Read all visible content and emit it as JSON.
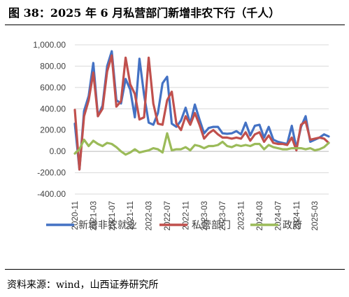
{
  "title": "图 38：2025 年 6 月私营部门新增非农下行（千人）",
  "source": "资料来源：wind，山西证券研究所",
  "chart_data": {
    "type": "line",
    "title": "",
    "xlabel": "",
    "ylabel": "",
    "ylim": [
      -400,
      1000
    ],
    "y_ticks": [
      -400,
      -200,
      0,
      200,
      400,
      600,
      800,
      1000
    ],
    "y_tick_labels": [
      "-400.00",
      "-200.00",
      "0.00",
      "200.00",
      "400.00",
      "600.00",
      "800.00",
      "1,000.00"
    ],
    "x_tick_labels": [
      "2020-11",
      "2021-03",
      "2021-07",
      "2021-11",
      "2022-03",
      "2022-07",
      "2022-11",
      "2023-03",
      "2023-07",
      "2023-11",
      "2024-03",
      "2024-07",
      "2024-11",
      "2025-03"
    ],
    "x_tick_every": 4,
    "grid": true,
    "legend_position": "bottom",
    "x": [
      "2020-11",
      "2020-12",
      "2021-01",
      "2021-02",
      "2021-03",
      "2021-04",
      "2021-05",
      "2021-06",
      "2021-07",
      "2021-08",
      "2021-09",
      "2021-10",
      "2021-11",
      "2021-12",
      "2022-01",
      "2022-02",
      "2022-03",
      "2022-04",
      "2022-05",
      "2022-06",
      "2022-07",
      "2022-08",
      "2022-09",
      "2022-10",
      "2022-11",
      "2022-12",
      "2023-01",
      "2023-02",
      "2023-03",
      "2023-04",
      "2023-05",
      "2023-06",
      "2023-07",
      "2023-08",
      "2023-09",
      "2023-10",
      "2023-11",
      "2023-12",
      "2024-01",
      "2024-02",
      "2024-03",
      "2024-04",
      "2024-05",
      "2024-06",
      "2024-07",
      "2024-08",
      "2024-09",
      "2024-10",
      "2024-11",
      "2024-12",
      "2025-01",
      "2025-02",
      "2025-03",
      "2025-04",
      "2025-05",
      "2025-06"
    ],
    "series": [
      {
        "name": "新增非农就业",
        "color": "#4472C4",
        "values": [
          260,
          -170,
          380,
          520,
          830,
          330,
          430,
          800,
          940,
          480,
          450,
          680,
          580,
          320,
          870,
          530,
          270,
          250,
          360,
          640,
          700,
          260,
          230,
          290,
          410,
          260,
          440,
          300,
          170,
          220,
          230,
          230,
          170,
          165,
          170,
          190,
          160,
          270,
          150,
          240,
          250,
          130,
          230,
          110,
          90,
          80,
          70,
          240,
          30,
          230,
          330,
          90,
          110,
          130,
          160,
          140
        ]
      },
      {
        "name": "私营部门",
        "color": "#C0504D",
        "values": [
          390,
          -170,
          330,
          480,
          740,
          330,
          400,
          750,
          900,
          420,
          470,
          880,
          630,
          540,
          300,
          320,
          880,
          450,
          260,
          250,
          480,
          560,
          260,
          200,
          330,
          250,
          360,
          250,
          120,
          170,
          200,
          160,
          130,
          130,
          120,
          130,
          120,
          180,
          100,
          160,
          180,
          90,
          150,
          80,
          70,
          70,
          60,
          130,
          10,
          250,
          280,
          110,
          120,
          130,
          120,
          80
        ]
      },
      {
        "name": "政府",
        "color": "#9BBB59",
        "values": [
          -20,
          20,
          110,
          50,
          100,
          70,
          50,
          80,
          70,
          40,
          0,
          -30,
          -10,
          20,
          -10,
          0,
          10,
          30,
          20,
          -10,
          170,
          10,
          20,
          20,
          40,
          10,
          60,
          50,
          30,
          50,
          50,
          60,
          90,
          50,
          40,
          60,
          50,
          60,
          50,
          70,
          70,
          20,
          60,
          40,
          30,
          20,
          20,
          30,
          30,
          30,
          20,
          30,
          10,
          20,
          40,
          80
        ]
      }
    ]
  }
}
